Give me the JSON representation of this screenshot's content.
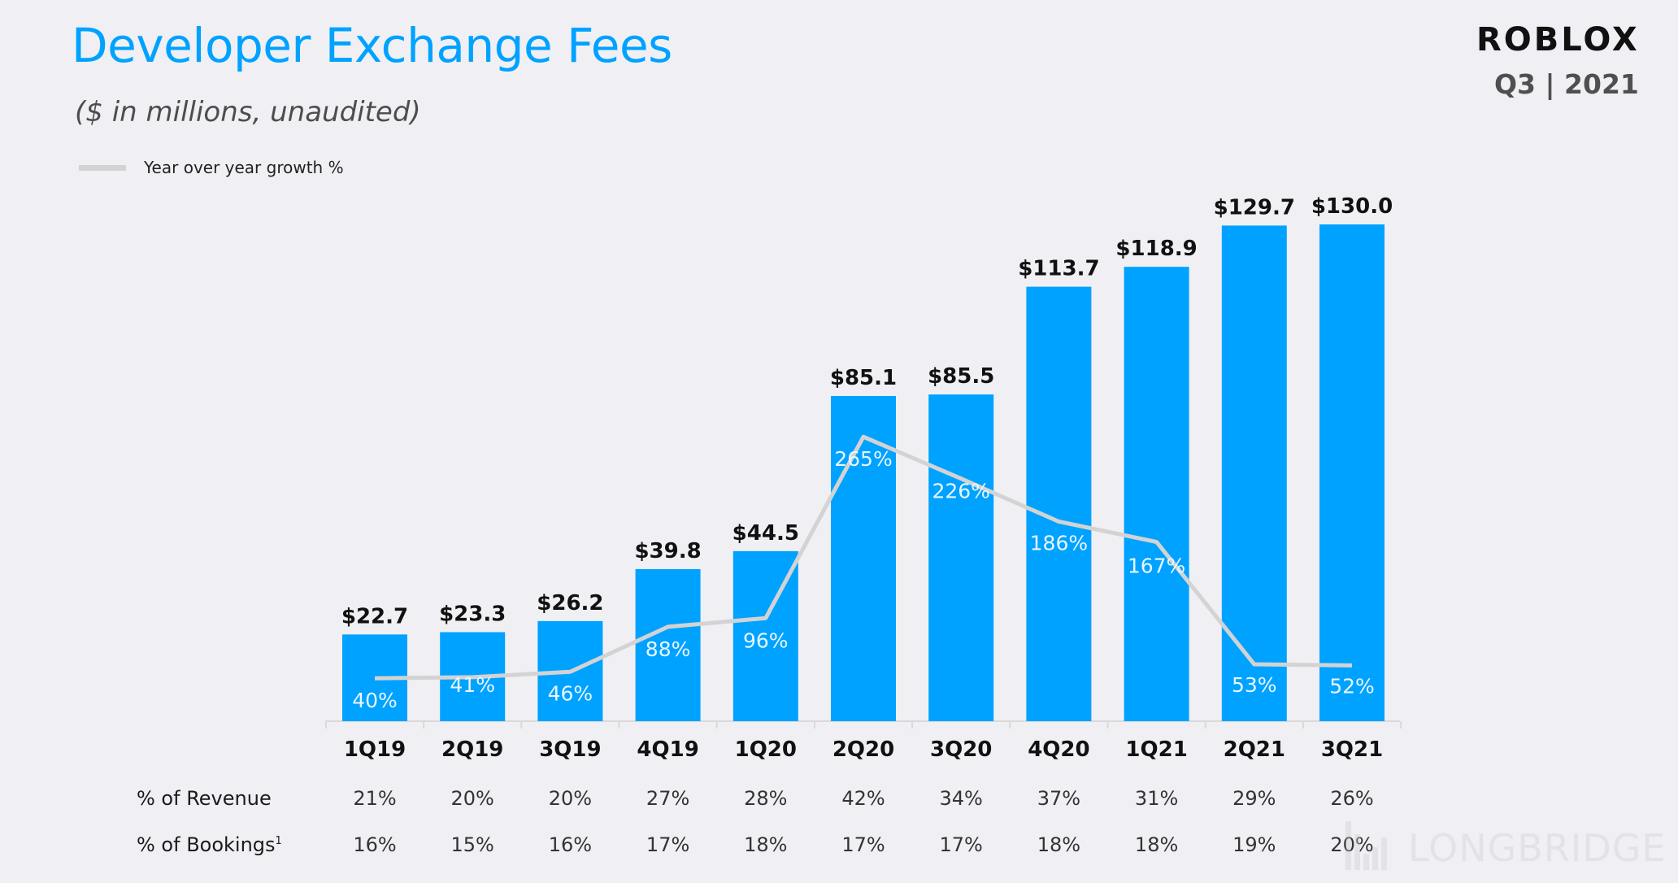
{
  "header": {
    "title": "Developer Exchange Fees",
    "subtitle": "($ in millions,  unaudited)",
    "logo": "ROBLOX",
    "period": "Q3 | 2021"
  },
  "colors": {
    "bar": "#00a2ff",
    "line": "#d3d3d3",
    "title": "#00a2ff",
    "axis": "#d9d9d9"
  },
  "chart_data": {
    "type": "bar",
    "title": "Developer Exchange Fees",
    "subtitle": "($ in millions, unaudited)",
    "categories": [
      "1Q19",
      "2Q19",
      "3Q19",
      "4Q19",
      "1Q20",
      "2Q20",
      "3Q20",
      "4Q20",
      "1Q21",
      "2Q21",
      "3Q21"
    ],
    "series": [
      {
        "name": "Developer Exchange Fees ($M)",
        "type": "bar",
        "values": [
          22.7,
          23.3,
          26.2,
          39.8,
          44.5,
          85.1,
          85.5,
          113.7,
          118.9,
          129.7,
          130.0
        ],
        "labels": [
          "$22.7",
          "$23.3",
          "$26.2",
          "$39.8",
          "$44.5",
          "$85.1",
          "$85.5",
          "$113.7",
          "$118.9",
          "$129.7",
          "$130.0"
        ]
      },
      {
        "name": "Year over year growth %",
        "type": "line",
        "values": [
          40,
          41,
          46,
          88,
          96,
          265,
          226,
          186,
          167,
          53,
          52
        ],
        "labels": [
          "40%",
          "41%",
          "46%",
          "88%",
          "96%",
          "265%",
          "226%",
          "186%",
          "167%",
          "53%",
          "52%"
        ]
      }
    ],
    "legend": {
      "position": "top-left",
      "entries": [
        "Year over year growth %"
      ]
    },
    "xlabel": "",
    "ylabel": "",
    "ylim": [
      0,
      130
    ],
    "grid": false,
    "table_rows": [
      {
        "label": "% of Revenue",
        "footnote": "",
        "values": [
          "21%",
          "20%",
          "20%",
          "27%",
          "28%",
          "42%",
          "34%",
          "37%",
          "31%",
          "29%",
          "26%"
        ]
      },
      {
        "label": "% of Bookings",
        "footnote": "1",
        "values": [
          "16%",
          "15%",
          "16%",
          "17%",
          "18%",
          "17%",
          "17%",
          "18%",
          "18%",
          "19%",
          "20%"
        ]
      }
    ]
  },
  "watermark": "LONGBRIDGE"
}
